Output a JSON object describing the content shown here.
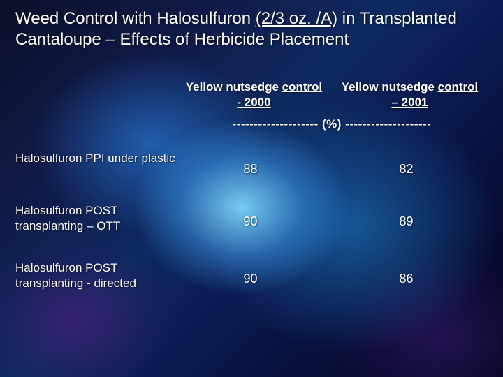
{
  "title": {
    "pre": "Weed Control with Halosulfuron ",
    "ul": "(2/3 oz. /A)",
    "post": " in Transplanted Cantaloupe – Effects of Herbicide Placement"
  },
  "columns": [
    {
      "label_plain": "Yellow nutsedge ",
      "label_ul": "control",
      "sub_plain": "",
      "sub_ul": "- 2000"
    },
    {
      "label_plain": "Yellow nutsedge ",
      "label_ul": "control",
      "sub_plain": "",
      "sub_ul": "– 2001"
    }
  ],
  "units_line": "-------------------- (%) --------------------",
  "rows": [
    {
      "label": "Halosulfuron PPI under plastic",
      "values": [
        "88",
        "82"
      ]
    },
    {
      "label": "Halosulfuron POST transplanting – OTT",
      "values": [
        "90",
        "89"
      ]
    },
    {
      "label": "Halosulfuron POST transplanting - directed",
      "values": [
        "90",
        "86"
      ]
    }
  ],
  "style": {
    "text_color": "#ffffff",
    "title_fontsize": 24,
    "body_fontsize": 17,
    "cell_fontsize": 18
  }
}
